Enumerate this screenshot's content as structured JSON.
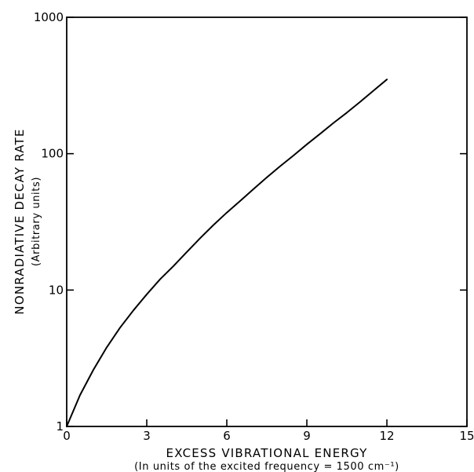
{
  "chart_data": {
    "type": "line",
    "xlabel": "EXCESS VIBRATIONAL ENERGY",
    "xlabel_sub": "(In units of the excited frequency = 1500 cm⁻¹)",
    "ylabel": "NONRADIATIVE DECAY RATE",
    "ylabel_sub": "(Arbitrary units)",
    "xlim": [
      0,
      15
    ],
    "ylim": [
      1,
      1000
    ],
    "y_scale": "log",
    "grid": false,
    "legend": "none",
    "x_ticks": [
      0,
      3,
      6,
      9,
      12,
      15
    ],
    "x_tick_labels": [
      "0",
      "3",
      "6",
      "9",
      "12",
      "15"
    ],
    "y_ticks": [
      1,
      10,
      100,
      1000
    ],
    "y_tick_labels": [
      "1",
      "10",
      "100",
      "1000"
    ],
    "series": [
      {
        "x": [
          0,
          0.5,
          1,
          1.5,
          2,
          2.5,
          3,
          3.5,
          4,
          4.5,
          5,
          5.5,
          6,
          6.5,
          7,
          7.5,
          8,
          8.5,
          9,
          9.5,
          10,
          10.5,
          11,
          11.5,
          12
        ],
        "y": [
          1.0,
          1.7,
          2.6,
          3.8,
          5.3,
          7.1,
          9.3,
          12,
          15,
          19,
          24,
          30,
          37,
          45,
          55,
          67,
          81,
          97,
          117,
          140,
          168,
          200,
          240,
          290,
          350
        ]
      }
    ],
    "line_color": "#000000"
  }
}
